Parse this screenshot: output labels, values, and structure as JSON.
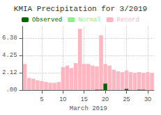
{
  "chart_data": {
    "type": "bar",
    "title": "KMIA Precipitation for 3/2019",
    "xlabel": "March 2019",
    "x": [
      1,
      2,
      3,
      4,
      5,
      6,
      7,
      8,
      9,
      10,
      11,
      12,
      13,
      14,
      15,
      16,
      17,
      18,
      19,
      20,
      21,
      22,
      23,
      24,
      25,
      26,
      27,
      28,
      29,
      30,
      31
    ],
    "series": [
      {
        "name": "Observed",
        "color": "#006400",
        "values": [
          0.0,
          0.0,
          0.0,
          0.0,
          0.0,
          0.0,
          0.0,
          0.0,
          0.0,
          0.0,
          0.0,
          0.0,
          0.0,
          0.0,
          0.0,
          0.0,
          0.0,
          0.05,
          0.05,
          0.8,
          0.0,
          0.0,
          0.0,
          0.0,
          0.15,
          0.0,
          0.0,
          0.05,
          0.05,
          0.0,
          0.0
        ]
      },
      {
        "name": "Normal",
        "color": "#90EE90",
        "values": [
          null,
          null,
          null,
          null,
          null,
          null,
          null,
          null,
          null,
          null,
          null,
          null,
          null,
          null,
          null,
          null,
          null,
          null,
          null,
          null,
          null,
          null,
          null,
          null,
          null,
          null,
          null,
          null,
          null,
          null,
          null
        ]
      },
      {
        "name": "Record",
        "color": "#FFB6C1",
        "values": [
          3.2,
          1.5,
          1.4,
          1.2,
          1.1,
          1.0,
          0.9,
          0.9,
          1.0,
          2.8,
          3.0,
          2.7,
          3.3,
          7.5,
          3.2,
          3.2,
          3.0,
          2.9,
          6.7,
          3.2,
          3.0,
          2.5,
          2.3,
          2.2,
          2.4,
          2.2,
          2.1,
          2.2,
          2.1,
          2.2,
          2.1
        ]
      }
    ],
    "xlim": [
      0.5,
      31.5
    ],
    "xticks": [
      5,
      10,
      15,
      20,
      25,
      30
    ],
    "ylim": [
      0,
      7.8
    ],
    "yticks": [
      {
        "value": 0,
        "label": ".00"
      },
      2.12,
      4.25,
      6.38
    ],
    "grid": true,
    "legend": "top"
  }
}
